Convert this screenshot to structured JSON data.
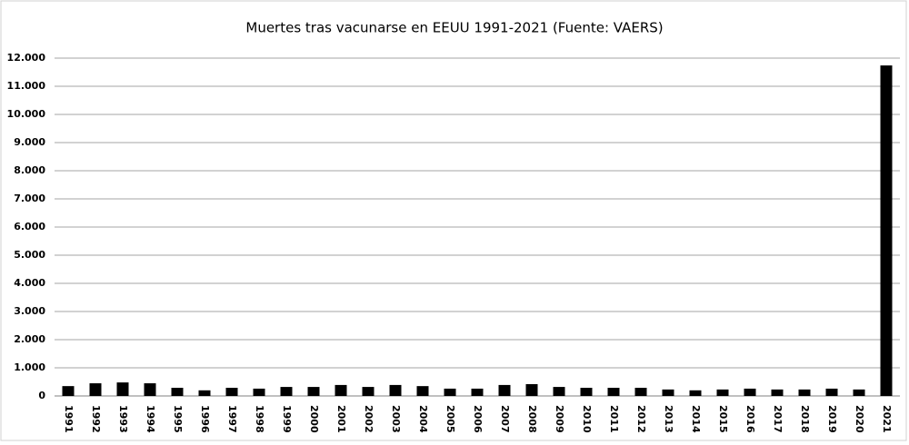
{
  "chart_data": {
    "type": "bar",
    "title": "Muertes tras vacunarse en EEUU 1991-2021 (Fuente: VAERS)",
    "categories": [
      "1991",
      "1992",
      "1993",
      "1994",
      "1995",
      "1996",
      "1997",
      "1998",
      "1999",
      "2000",
      "2001",
      "2002",
      "2003",
      "2004",
      "2005",
      "2006",
      "2007",
      "2008",
      "2009",
      "2010",
      "2011",
      "2012",
      "2013",
      "2014",
      "2015",
      "2016",
      "2017",
      "2018",
      "2019",
      "2020",
      "2021"
    ],
    "values": [
      350,
      450,
      480,
      450,
      290,
      200,
      290,
      260,
      320,
      320,
      390,
      320,
      390,
      350,
      260,
      260,
      390,
      420,
      320,
      290,
      290,
      290,
      230,
      200,
      230,
      260,
      230,
      230,
      260,
      230,
      11740
    ],
    "color": "#000000",
    "ylim": [
      0,
      12000
    ],
    "yticks": [
      0,
      {
        "value": 1000,
        "label": "1.000"
      },
      {
        "value": 2000,
        "label": "2.000"
      },
      {
        "value": 3000,
        "label": "3.000"
      },
      {
        "value": 4000,
        "label": "4.000"
      },
      {
        "value": 5000,
        "label": "5.000"
      },
      {
        "value": 6000,
        "label": "6.000"
      },
      {
        "value": 7000,
        "label": "7.000"
      },
      {
        "value": 8000,
        "label": "8.000"
      },
      {
        "value": 9000,
        "label": "9.000"
      },
      {
        "value": 10000,
        "label": "10.000"
      },
      {
        "value": 11000,
        "label": "11.000"
      },
      {
        "value": 12000,
        "label": "12.000"
      }
    ],
    "grid": true
  }
}
